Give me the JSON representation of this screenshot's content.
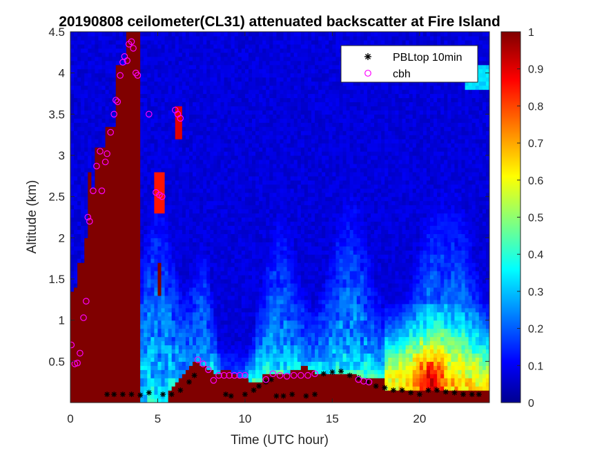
{
  "chart_data": {
    "type": "heatmap",
    "title": "20190808 ceilometer(CL31) attenuated backscatter at Fire Island",
    "xlabel": "Time (UTC hour)",
    "ylabel": "Altitude (km)",
    "xlim": [
      0,
      24
    ],
    "ylim": [
      0,
      4.5
    ],
    "x_ticks": [
      0,
      5,
      10,
      15,
      20
    ],
    "y_ticks": [
      0.5,
      1,
      1.5,
      2,
      2.5,
      3,
      3.5,
      4,
      4.5
    ],
    "colorbar": {
      "range": [
        0,
        1
      ],
      "ticks": [
        0,
        0.1,
        0.2,
        0.3,
        0.4,
        0.5,
        0.6,
        0.7,
        0.8,
        0.9,
        1
      ],
      "colormap": "jet",
      "colors": [
        "#00008f",
        "#0000ff",
        "#00ffff",
        "#ffff00",
        "#ff0000",
        "#800000"
      ]
    },
    "legend": {
      "position": "top-right"
    },
    "series": [
      {
        "name": "PBLtop 10min",
        "marker": "asterisk",
        "color": "#000000",
        "x": [
          2.1,
          2.5,
          3.0,
          3.5,
          4.0,
          4.5,
          5.3,
          5.8,
          6.3,
          6.8,
          7.1,
          8.9,
          9.2,
          10.0,
          10.5,
          10.8,
          11.2,
          11.5,
          11.8,
          12.2,
          12.7,
          13.5,
          14.0,
          14.5,
          15.0,
          15.5,
          16.0,
          16.5,
          17.0,
          17.5,
          18.0,
          18.5,
          19.0,
          19.5,
          20.0,
          20.5,
          21.0,
          21.5,
          22.0,
          22.5,
          23.0,
          23.4
        ],
        "y": [
          0.1,
          0.1,
          0.1,
          0.1,
          0.09,
          0.12,
          0.1,
          0.1,
          0.15,
          0.25,
          0.33,
          0.1,
          0.08,
          0.1,
          0.15,
          0.2,
          0.25,
          0.28,
          0.08,
          0.08,
          0.1,
          0.08,
          0.1,
          0.35,
          0.37,
          0.38,
          0.33,
          0.3,
          0.25,
          0.2,
          0.18,
          0.15,
          0.15,
          0.12,
          0.1,
          0.15,
          0.15,
          0.13,
          0.12,
          0.1,
          0.1,
          0.1
        ]
      },
      {
        "name": "cbh",
        "marker": "circle",
        "color": "#ff00ff",
        "x": [
          0.05,
          0.25,
          0.4,
          0.55,
          0.75,
          0.9,
          1.0,
          1.1,
          1.3,
          1.5,
          1.7,
          1.8,
          2.0,
          2.1,
          2.3,
          2.5,
          2.6,
          2.7,
          2.85,
          3.0,
          3.1,
          3.25,
          3.35,
          3.5,
          3.6,
          3.75,
          3.85,
          4.5,
          4.9,
          5.1,
          5.25,
          6.0,
          6.15,
          6.3,
          7.3,
          7.6,
          7.9,
          8.2,
          8.5,
          8.8,
          9.1,
          9.4,
          9.7,
          10.0,
          11.2,
          11.6,
          12.0,
          12.4,
          12.8,
          13.2,
          13.6,
          14.0,
          16.5,
          16.8,
          17.1
        ],
        "y": [
          0.7,
          0.47,
          0.48,
          0.6,
          1.03,
          1.23,
          2.25,
          2.2,
          2.57,
          2.87,
          3.05,
          2.57,
          2.92,
          3.02,
          3.28,
          3.5,
          3.67,
          3.65,
          3.97,
          4.13,
          4.2,
          4.15,
          4.35,
          4.38,
          4.3,
          4.0,
          3.97,
          3.5,
          2.55,
          2.52,
          2.5,
          3.55,
          3.5,
          3.45,
          0.52,
          0.47,
          0.4,
          0.27,
          0.33,
          0.33,
          0.33,
          0.33,
          0.33,
          0.33,
          0.28,
          0.35,
          0.33,
          0.32,
          0.33,
          0.33,
          0.33,
          0.35,
          0.28,
          0.26,
          0.25
        ]
      }
    ]
  }
}
